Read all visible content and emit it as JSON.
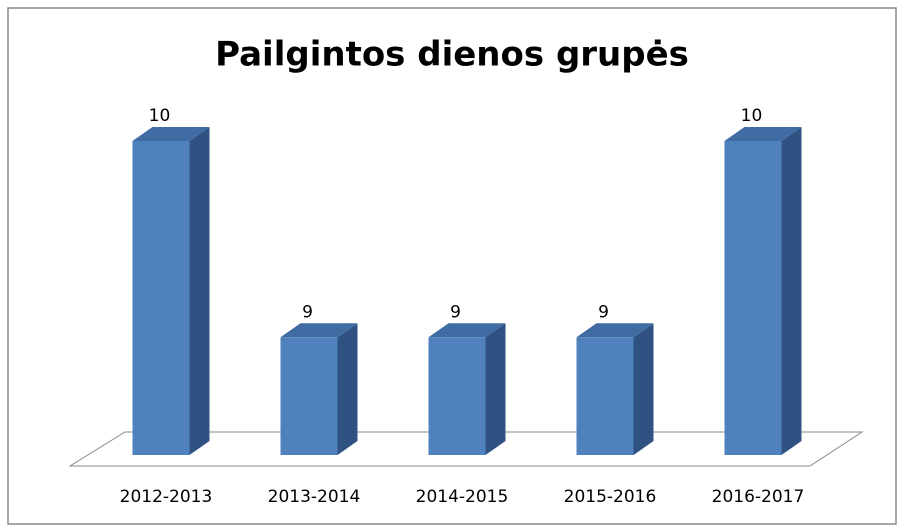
{
  "chart_data": {
    "type": "bar3d",
    "title": "Pailgintos dienos grupės",
    "categories": [
      "2012-2013",
      "2013-2014",
      "2014-2015",
      "2015-2016",
      "2016-2017"
    ],
    "values": [
      10,
      9,
      9,
      9,
      10
    ],
    "color": "#4f81bd",
    "ylim": [
      8.4,
      10
    ]
  }
}
